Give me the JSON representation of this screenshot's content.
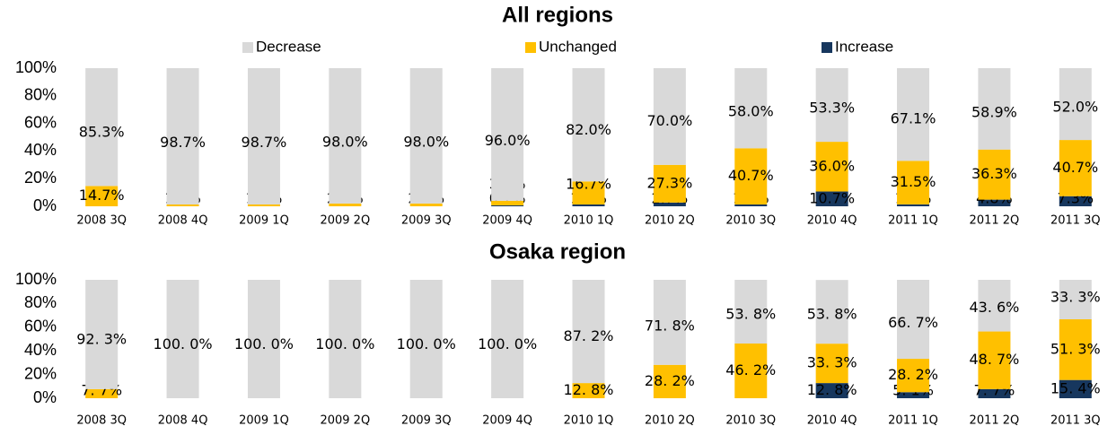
{
  "chart_data": [
    {
      "type": "stacked_bar",
      "title": "All regions",
      "legend": "top",
      "categories": [
        "2008 3Q",
        "2008 4Q",
        "2009 1Q",
        "2009 2Q",
        "2009 3Q",
        "2009 4Q",
        "2010 1Q",
        "2010 2Q",
        "2010 3Q",
        "2010 4Q",
        "2011 1Q",
        "2011 2Q",
        "2011 3Q"
      ],
      "ylim": [
        0,
        100
      ],
      "yticks": [
        {
          "value": 0,
          "label": "0%"
        },
        {
          "value": 20,
          "label": "20%"
        },
        {
          "value": 40,
          "label": "40%"
        },
        {
          "value": 60,
          "label": "60%"
        },
        {
          "value": 80,
          "label": "80%"
        },
        {
          "value": 100,
          "label": "100%"
        }
      ],
      "series": [
        {
          "name": "Increase",
          "color": "#17375e",
          "values": [
            0,
            0,
            0,
            0,
            0,
            0.7,
            1.3,
            2.7,
            1.3,
            10.7,
            1.4,
            4.8,
            7.3
          ],
          "value_labels": [
            null,
            null,
            null,
            null,
            null,
            "0.7%",
            "1.3%",
            "2.7%",
            "1.3%",
            "10.7%",
            "1.4%",
            "4.8%",
            "7.3%"
          ]
        },
        {
          "name": "Unchanged",
          "color": "#ffc000",
          "values": [
            14.7,
            1.3,
            1.3,
            2.0,
            2.0,
            3.3,
            16.7,
            27.3,
            40.7,
            36.0,
            31.5,
            36.3,
            40.7
          ],
          "value_labels": [
            "14.7%",
            "1.3%",
            "1.3%",
            "2.0%",
            "2.0%",
            "3.3%",
            "16.7%",
            "27.3%",
            "40.7%",
            "36.0%",
            "31.5%",
            "36.3%",
            "40.7%"
          ]
        },
        {
          "name": "Decrease",
          "color": "#d9d9d9",
          "values": [
            85.3,
            98.7,
            98.7,
            98.0,
            98.0,
            96.0,
            82.0,
            70.0,
            58.0,
            53.3,
            67.1,
            58.9,
            52.0
          ],
          "value_labels": [
            "85.3%",
            "98.7%",
            "98.7%",
            "98.0%",
            "98.0%",
            "96.0%",
            "82.0%",
            "70.0%",
            "58.0%",
            "53.3%",
            "67.1%",
            "58.9%",
            "52.0%"
          ]
        }
      ]
    },
    {
      "type": "stacked_bar",
      "title": "Osaka region",
      "legend": false,
      "categories": [
        "2008 3Q",
        "2008 4Q",
        "2009 1Q",
        "2009 2Q",
        "2009 3Q",
        "2009 4Q",
        "2010 1Q",
        "2010 2Q",
        "2010 3Q",
        "2010 4Q",
        "2011 1Q",
        "2011 2Q",
        "2011 3Q"
      ],
      "ylim": [
        0,
        100
      ],
      "yticks": [
        {
          "value": 0,
          "label": "0%"
        },
        {
          "value": 20,
          "label": "20%"
        },
        {
          "value": 40,
          "label": "40%"
        },
        {
          "value": 60,
          "label": "60%"
        },
        {
          "value": 80,
          "label": "80%"
        },
        {
          "value": 100,
          "label": "100%"
        }
      ],
      "series": [
        {
          "name": "Increase",
          "color": "#17375e",
          "values": [
            0,
            0,
            0,
            0,
            0,
            0,
            0,
            0,
            0,
            12.8,
            5.1,
            7.7,
            15.4
          ],
          "value_labels": [
            null,
            null,
            null,
            null,
            null,
            null,
            null,
            null,
            null,
            "12. 8%",
            "5. 1%",
            "7. 7%",
            "15. 4%"
          ]
        },
        {
          "name": "Unchanged",
          "color": "#ffc000",
          "values": [
            7.7,
            0,
            0,
            0,
            0,
            0,
            12.8,
            28.2,
            46.2,
            33.3,
            28.2,
            48.7,
            51.3
          ],
          "value_labels": [
            "7. 7%",
            null,
            null,
            null,
            null,
            null,
            "12. 8%",
            "28. 2%",
            "46. 2%",
            "33. 3%",
            "28. 2%",
            "48. 7%",
            "51. 3%"
          ]
        },
        {
          "name": "Decrease",
          "color": "#d9d9d9",
          "values": [
            92.3,
            100,
            100,
            100,
            100,
            100,
            87.2,
            71.8,
            53.8,
            53.8,
            66.7,
            43.6,
            33.3
          ],
          "value_labels": [
            "92. 3%",
            "100. 0%",
            "100. 0%",
            "100. 0%",
            "100. 0%",
            "100. 0%",
            "87. 2%",
            "71. 8%",
            "53. 8%",
            "53. 8%",
            "66. 7%",
            "43. 6%",
            "33. 3%"
          ]
        }
      ]
    }
  ]
}
